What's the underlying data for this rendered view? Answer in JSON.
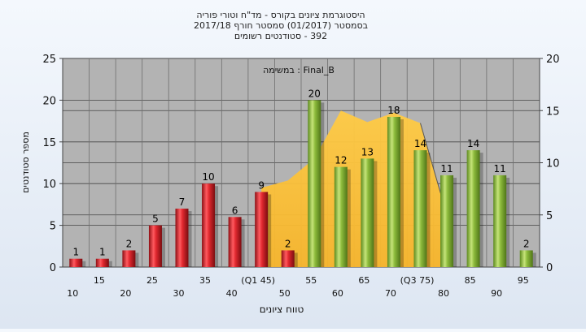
{
  "chart_data": {
    "type": "bar",
    "title_lines": [
      "היסטוגרמת ציונים בקורס - מד\"ח וטורי פוריה",
      "בסמסטר  (01/2017)  סמסטר חורף 2017/18",
      "392 - סטודנטים רשומים"
    ],
    "annotation": "במשימה : Final_B",
    "ylabel": "מספר סטודנטים",
    "xlabel": "טווח ציונים",
    "ylim_left": [
      0,
      25
    ],
    "yticks_left": [
      0,
      5,
      10,
      15,
      20,
      25
    ],
    "ylim_right": [
      0,
      20
    ],
    "yticks_right": [
      0,
      5,
      10,
      15,
      20
    ],
    "categories": [
      "10",
      "15",
      "20",
      "25",
      "30",
      "35",
      "40",
      "(Q1 45)",
      "50",
      "55",
      "60",
      "65",
      "70",
      "(Q3 75)",
      "80",
      "85",
      "90",
      "95"
    ],
    "values": [
      1,
      1,
      2,
      5,
      7,
      10,
      6,
      9,
      2,
      20,
      12,
      13,
      18,
      14,
      11,
      14,
      11,
      2
    ],
    "bar_colors": [
      "#e0282f",
      "#e0282f",
      "#e0282f",
      "#e0282f",
      "#e0282f",
      "#e0282f",
      "#e0282f",
      "#e0282f",
      "#e0282f",
      "#8dbb3c",
      "#8dbb3c",
      "#8dbb3c",
      "#8dbb3c",
      "#8dbb3c",
      "#8dbb3c",
      "#8dbb3c",
      "#8dbb3c",
      "#8dbb3c"
    ],
    "area_series": {
      "x": [
        "(Q1 45)",
        "50",
        "55",
        "60",
        "65",
        "70",
        "(Q3 75)",
        "80"
      ],
      "values": [
        7.6,
        8.3,
        10.4,
        15,
        13.9,
        14.8,
        13.8,
        5
      ]
    },
    "area_color": "#ffc040",
    "plot_background": "#b3b3b3",
    "grid": true,
    "legend": "none"
  }
}
